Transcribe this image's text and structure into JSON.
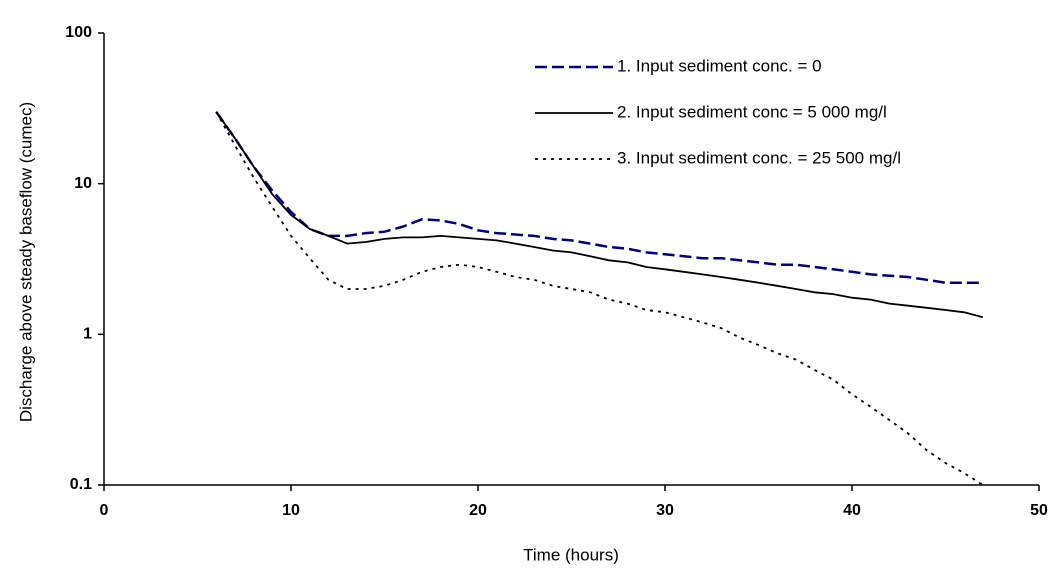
{
  "chart_data": {
    "type": "line",
    "x_label": "Time (hours)",
    "y_label": "Discharge above steady baseflow (cumec)",
    "x": [
      6,
      7,
      8,
      9,
      10,
      11,
      12,
      13,
      14,
      15,
      16,
      17,
      18,
      19,
      20,
      21,
      22,
      23,
      24,
      25,
      26,
      27,
      28,
      29,
      30,
      31,
      32,
      33,
      34,
      35,
      36,
      37,
      38,
      39,
      40,
      41,
      42,
      43,
      44,
      45,
      46,
      47
    ],
    "series": [
      {
        "name": "1. Input sediment conc. = 0",
        "color": "#000080",
        "dash": "dashed",
        "values": [
          30,
          20,
          13,
          9,
          6.5,
          5,
          4.5,
          4.5,
          4.7,
          4.8,
          5.2,
          5.8,
          5.7,
          5.4,
          4.9,
          4.7,
          4.6,
          4.5,
          4.3,
          4.2,
          4.0,
          3.8,
          3.7,
          3.5,
          3.4,
          3.3,
          3.2,
          3.2,
          3.1,
          3.0,
          2.9,
          2.9,
          2.8,
          2.7,
          2.6,
          2.5,
          2.45,
          2.4,
          2.3,
          2.2,
          2.2,
          2.2
        ]
      },
      {
        "name": "2. Input sediment conc = 5 000 mg/l",
        "color": "#000000",
        "dash": "solid",
        "values": [
          30,
          20,
          13,
          8.5,
          6.2,
          5,
          4.5,
          4.0,
          4.1,
          4.3,
          4.4,
          4.4,
          4.5,
          4.4,
          4.3,
          4.2,
          4.0,
          3.8,
          3.6,
          3.5,
          3.3,
          3.1,
          3.0,
          2.8,
          2.7,
          2.6,
          2.5,
          2.4,
          2.3,
          2.2,
          2.1,
          2.0,
          1.9,
          1.85,
          1.75,
          1.7,
          1.6,
          1.55,
          1.5,
          1.45,
          1.4,
          1.3
        ]
      },
      {
        "name": "3. Input sediment conc. = 25 500 mg/l",
        "color": "#000000",
        "dash": "dotted",
        "values": [
          30,
          18,
          11,
          7,
          4.5,
          3.2,
          2.3,
          2.0,
          2.0,
          2.1,
          2.3,
          2.6,
          2.8,
          2.9,
          2.8,
          2.6,
          2.4,
          2.3,
          2.1,
          2.0,
          1.9,
          1.7,
          1.6,
          1.45,
          1.4,
          1.3,
          1.2,
          1.1,
          0.95,
          0.85,
          0.75,
          0.68,
          0.58,
          0.5,
          0.4,
          0.33,
          0.27,
          0.22,
          0.17,
          0.14,
          0.12,
          0.1
        ]
      }
    ],
    "xlim": [
      0,
      50
    ],
    "xticks": [
      0,
      10,
      20,
      30,
      40,
      50
    ],
    "ylim": [
      0.1,
      100
    ],
    "yticks": [
      0.1,
      1,
      10,
      100
    ],
    "yscale": "log",
    "grid": false,
    "legend": "upper right"
  }
}
